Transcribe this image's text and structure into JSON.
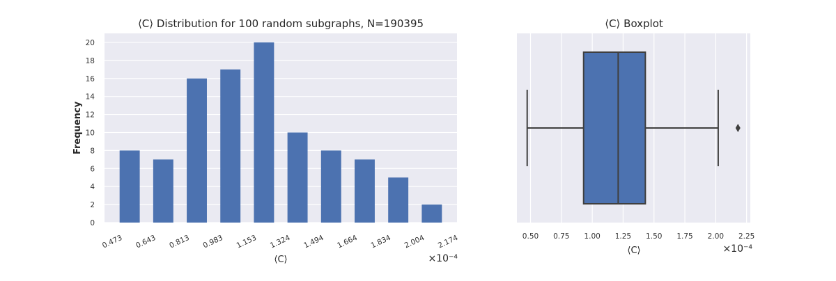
{
  "chart_data": [
    {
      "type": "bar",
      "title": "⟨C⟩ Distribution for 100 random subgraphs, N=190395",
      "xlabel": "⟨C⟩",
      "ylabel": "Frequency",
      "x_multiplier": "×10⁻⁴",
      "bin_edges": [
        "0.473",
        "0.643",
        "0.813",
        "0.983",
        "1.153",
        "1.324",
        "1.494",
        "1.664",
        "1.834",
        "2.004",
        "2.174"
      ],
      "values": [
        8,
        7,
        16,
        17,
        20,
        10,
        8,
        7,
        5,
        2
      ],
      "yticks": [
        0,
        2,
        4,
        6,
        8,
        10,
        12,
        14,
        16,
        18,
        20
      ],
      "ylim": [
        0,
        21
      ],
      "grid": true,
      "colors": {
        "bar": "#4c72b0",
        "background": "#eaeaf2",
        "grid": "#ffffff"
      }
    },
    {
      "type": "boxplot",
      "title": "⟨C⟩ Boxplot",
      "xlabel": "⟨C⟩",
      "x_multiplier": "×10⁻⁴",
      "xticks": [
        "0.50",
        "0.75",
        "1.00",
        "1.25",
        "1.50",
        "1.75",
        "2.00",
        "2.25"
      ],
      "xlim": [
        0.39,
        2.28
      ],
      "stats": {
        "whisker_low": 0.473,
        "q1": 0.93,
        "median": 1.21,
        "q3": 1.43,
        "whisker_high": 2.02,
        "outliers": [
          2.18
        ]
      },
      "grid": true,
      "colors": {
        "box": "#4c72b0",
        "line": "#3f3f3f",
        "background": "#eaeaf2",
        "grid": "#ffffff"
      }
    }
  ]
}
